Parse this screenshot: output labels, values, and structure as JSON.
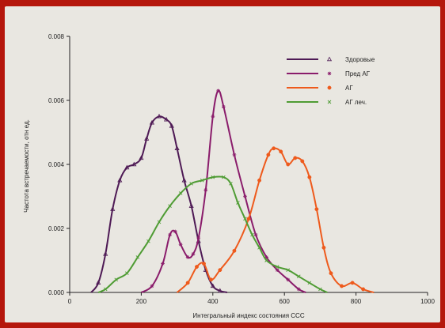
{
  "chart_data": {
    "type": "line",
    "xlabel": "Интегральный индекс состояния ССС",
    "ylabel": "Частота встречаемости, отн ед.",
    "xlim": [
      0,
      1000
    ],
    "ylim": [
      0,
      0.008
    ],
    "x_ticks": [
      "0",
      "200",
      "400",
      "600",
      "800",
      "1000"
    ],
    "y_ticks": [
      "0.000",
      "0.002",
      "0.004",
      "0.006",
      "0.008"
    ],
    "legend_position": "top-right",
    "grid": false,
    "series": [
      {
        "name": "Здоровые",
        "color": "#4e1a55",
        "marker": "triangle",
        "points": [
          [
            60,
            0.0
          ],
          [
            80,
            0.0003
          ],
          [
            100,
            0.0012
          ],
          [
            120,
            0.0026
          ],
          [
            140,
            0.0035
          ],
          [
            160,
            0.0039
          ],
          [
            180,
            0.004
          ],
          [
            200,
            0.0042
          ],
          [
            215,
            0.0048
          ],
          [
            230,
            0.0053
          ],
          [
            250,
            0.0055
          ],
          [
            270,
            0.0054
          ],
          [
            285,
            0.0052
          ],
          [
            300,
            0.0045
          ],
          [
            320,
            0.0035
          ],
          [
            340,
            0.0027
          ],
          [
            360,
            0.0016
          ],
          [
            380,
            0.0007
          ],
          [
            400,
            0.0002
          ],
          [
            420,
            5e-05
          ],
          [
            440,
            0.0
          ]
        ]
      },
      {
        "name": "Пред АГ",
        "color": "#8a1c6b",
        "marker": "star",
        "points": [
          [
            200,
            0.0
          ],
          [
            230,
            0.0002
          ],
          [
            260,
            0.0009
          ],
          [
            280,
            0.0018
          ],
          [
            295,
            0.0019
          ],
          [
            310,
            0.0015
          ],
          [
            330,
            0.0011
          ],
          [
            345,
            0.0012
          ],
          [
            360,
            0.0017
          ],
          [
            380,
            0.0032
          ],
          [
            400,
            0.0055
          ],
          [
            415,
            0.0063
          ],
          [
            430,
            0.0058
          ],
          [
            460,
            0.0043
          ],
          [
            490,
            0.003
          ],
          [
            520,
            0.0018
          ],
          [
            550,
            0.0011
          ],
          [
            580,
            0.0007
          ],
          [
            610,
            0.0004
          ],
          [
            640,
            0.0001
          ],
          [
            660,
            0.0
          ]
        ]
      },
      {
        "name": "АГ",
        "color": "#ee5a1c",
        "marker": "circle",
        "points": [
          [
            300,
            0.0
          ],
          [
            330,
            0.0003
          ],
          [
            355,
            0.0008
          ],
          [
            375,
            0.0009
          ],
          [
            395,
            0.0004
          ],
          [
            420,
            0.0007
          ],
          [
            460,
            0.0013
          ],
          [
            500,
            0.0023
          ],
          [
            530,
            0.0035
          ],
          [
            555,
            0.0043
          ],
          [
            570,
            0.0045
          ],
          [
            590,
            0.0044
          ],
          [
            610,
            0.004
          ],
          [
            630,
            0.0042
          ],
          [
            650,
            0.0041
          ],
          [
            670,
            0.0036
          ],
          [
            690,
            0.0026
          ],
          [
            710,
            0.0014
          ],
          [
            730,
            0.0006
          ],
          [
            760,
            0.0002
          ],
          [
            790,
            0.0003
          ],
          [
            820,
            0.0001
          ],
          [
            850,
            0.0
          ]
        ]
      },
      {
        "name": "АГ леч.",
        "color": "#4f9c34",
        "marker": "x",
        "points": [
          [
            80,
            0.0
          ],
          [
            100,
            0.0001
          ],
          [
            130,
            0.0004
          ],
          [
            160,
            0.0006
          ],
          [
            190,
            0.0011
          ],
          [
            220,
            0.0016
          ],
          [
            250,
            0.0022
          ],
          [
            280,
            0.0027
          ],
          [
            310,
            0.0031
          ],
          [
            340,
            0.0034
          ],
          [
            370,
            0.0035
          ],
          [
            400,
            0.0036
          ],
          [
            430,
            0.0036
          ],
          [
            450,
            0.0034
          ],
          [
            470,
            0.0028
          ],
          [
            490,
            0.0023
          ],
          [
            510,
            0.0018
          ],
          [
            530,
            0.0014
          ],
          [
            550,
            0.001
          ],
          [
            580,
            0.0008
          ],
          [
            610,
            0.0007
          ],
          [
            640,
            0.0005
          ],
          [
            670,
            0.0003
          ],
          [
            700,
            0.0001
          ],
          [
            720,
            0.0
          ]
        ]
      }
    ]
  }
}
